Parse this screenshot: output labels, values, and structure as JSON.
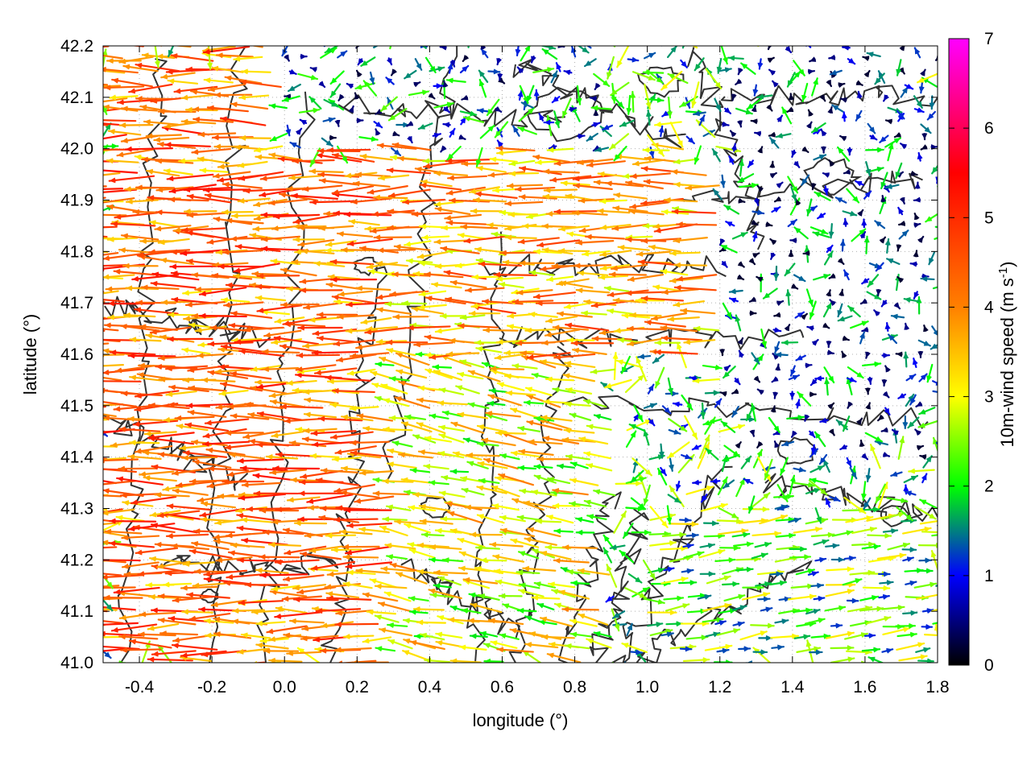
{
  "chart_data": {
    "type": "vector-field",
    "xlabel": "longitude (°)",
    "ylabel": "latitude (°)",
    "xlim": [
      -0.5,
      1.8
    ],
    "ylim": [
      41.0,
      42.2
    ],
    "x_ticks": [
      "-0.4",
      "-0.2",
      "0.0",
      "0.2",
      "0.4",
      "0.6",
      "0.8",
      "1.0",
      "1.2",
      "1.4",
      "1.6",
      "1.8"
    ],
    "x_tick_values": [
      -0.4,
      -0.2,
      0.0,
      0.2,
      0.4,
      0.6,
      0.8,
      1.0,
      1.2,
      1.4,
      1.6,
      1.8
    ],
    "y_ticks": [
      "41.0",
      "41.1",
      "41.2",
      "41.3",
      "41.4",
      "41.5",
      "41.6",
      "41.7",
      "41.8",
      "41.9",
      "42.0",
      "42.1",
      "42.2"
    ],
    "y_tick_values": [
      41.0,
      41.1,
      41.2,
      41.3,
      41.4,
      41.5,
      41.6,
      41.7,
      41.8,
      41.9,
      42.0,
      42.1,
      42.2
    ],
    "grid": true,
    "colorbar": {
      "label_main": "10m-wind speed (m s",
      "label_sup": "-1",
      "label_close": ")",
      "range": [
        0,
        7
      ],
      "ticks": [
        "0",
        "1",
        "2",
        "3",
        "4",
        "5",
        "6",
        "7"
      ],
      "tick_values": [
        0,
        1,
        2,
        3,
        4,
        5,
        6,
        7
      ],
      "colors": [
        "#000000",
        "#0000ff",
        "#00ff00",
        "#ffff00",
        "#ff8000",
        "#ff0000",
        "#ff00ff"
      ],
      "color_stops": [
        0,
        1,
        2,
        3,
        4,
        5.5,
        7
      ]
    },
    "wind_field": [
      {
        "lon_range": [
          -0.5,
          0.3
        ],
        "lat_range": [
          41.0,
          42.2
        ],
        "speed": 4.2,
        "direction": "westward"
      },
      {
        "lon_range": [
          0.3,
          0.9
        ],
        "lat_range": [
          41.0,
          41.6
        ],
        "speed": 3.0,
        "direction": "west-northwest"
      },
      {
        "lon_range": [
          0.3,
          1.2
        ],
        "lat_range": [
          41.6,
          42.0
        ],
        "speed": 3.8,
        "direction": "westward"
      },
      {
        "lon_range": [
          0.0,
          0.9
        ],
        "lat_range": [
          42.0,
          42.2
        ],
        "speed": 1.3,
        "direction": "variable"
      },
      {
        "lon_range": [
          1.2,
          1.8
        ],
        "lat_range": [
          41.4,
          42.2
        ],
        "speed": 1.0,
        "direction": "variable"
      },
      {
        "lon_range": [
          1.0,
          1.8
        ],
        "lat_range": [
          41.0,
          41.3
        ],
        "speed": 2.2,
        "direction": "eastward"
      }
    ]
  }
}
